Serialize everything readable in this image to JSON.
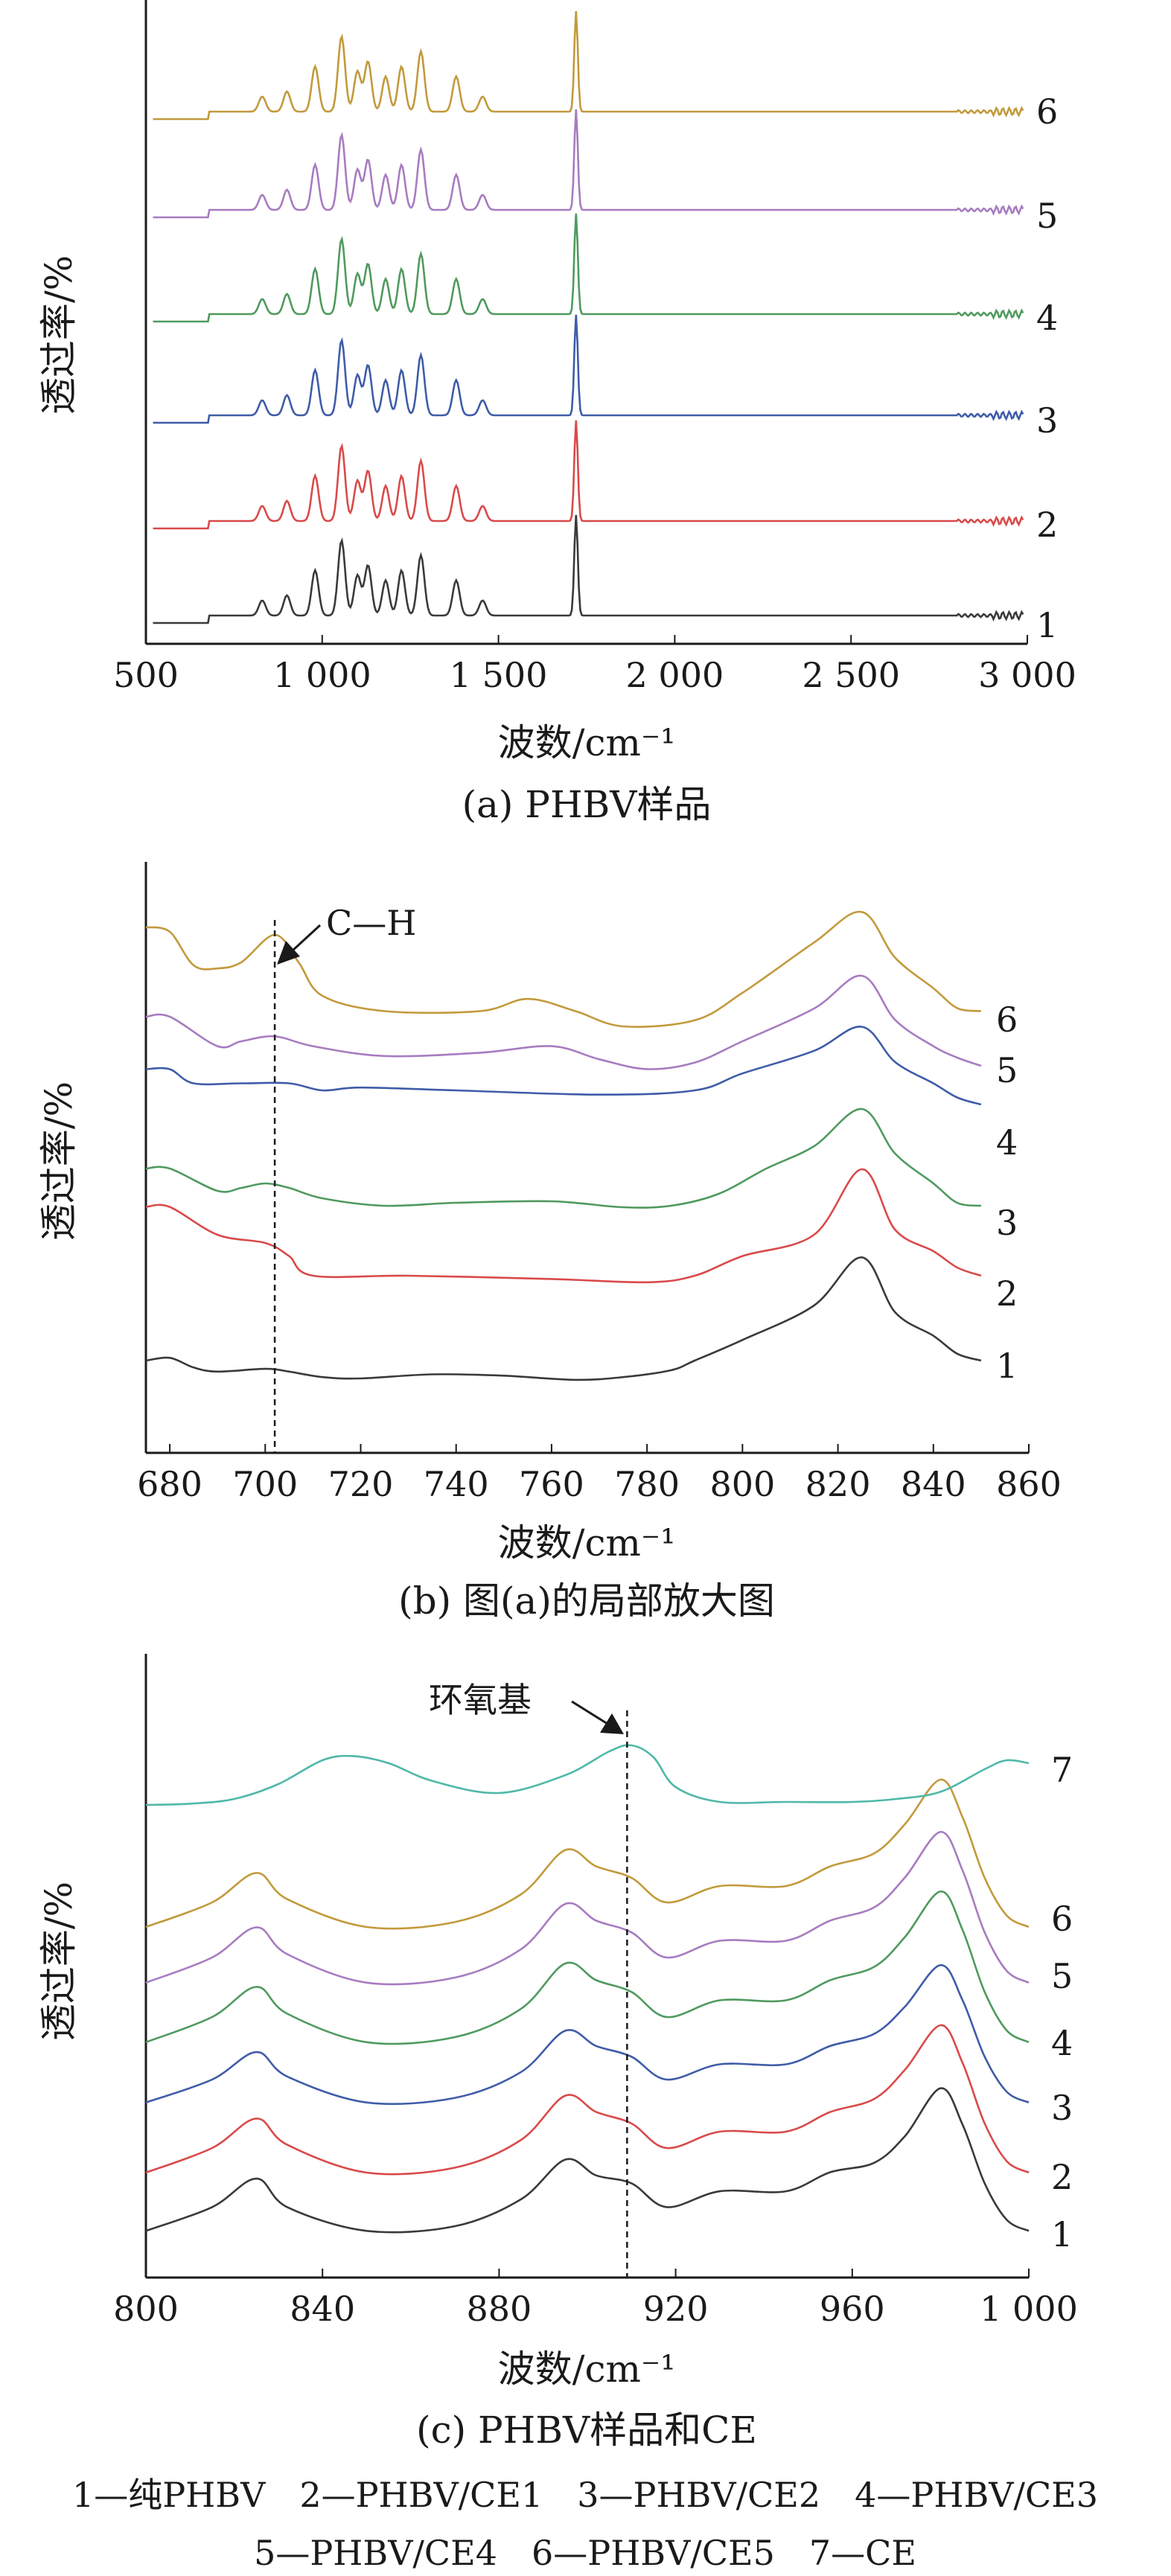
{
  "chart_data": [
    {
      "panel": "a",
      "type": "line",
      "caption": "(a) PHBV样品",
      "xlabel": "波数/cm⁻¹",
      "ylabel": "透过率/%",
      "xlim": [
        500,
        3000
      ],
      "xticks": [
        500,
        1000,
        1500,
        2000,
        2500,
        3000
      ],
      "xtick_labels": [
        "500",
        "1 000",
        "1 500",
        "2 000",
        "2 500",
        "3 000"
      ],
      "grid": false,
      "peaks": [
        [
          830,
          0.15
        ],
        [
          900,
          0.2
        ],
        [
          980,
          0.45
        ],
        [
          1055,
          0.75
        ],
        [
          1100,
          0.4
        ],
        [
          1130,
          0.5
        ],
        [
          1180,
          0.35
        ],
        [
          1225,
          0.45
        ],
        [
          1280,
          0.6
        ],
        [
          1380,
          0.35
        ],
        [
          1455,
          0.15
        ],
        [
          1720,
          1.0
        ]
      ],
      "series": [
        {
          "name": "1",
          "color": "#3a3a3a",
          "values": "curve-1"
        },
        {
          "name": "2",
          "color": "#d94a4a",
          "values": "curve-2"
        },
        {
          "name": "3",
          "color": "#3f5ca8",
          "values": "curve-3"
        },
        {
          "name": "4",
          "color": "#4f9a5e",
          "values": "curve-4"
        },
        {
          "name": "5",
          "color": "#a77cc0",
          "values": "curve-5"
        },
        {
          "name": "6",
          "color": "#c29a3c",
          "values": "curve-6"
        }
      ]
    },
    {
      "panel": "b",
      "type": "line",
      "caption": "(b) 图(a)的局部放大图",
      "xlabel": "波数/cm⁻¹",
      "ylabel": "透过率/%",
      "xlim": [
        675,
        860
      ],
      "xticks": [
        680,
        700,
        720,
        740,
        760,
        780,
        800,
        820,
        840,
        860
      ],
      "xtick_labels": [
        "680",
        "700",
        "720",
        "740",
        "760",
        "780",
        "800",
        "820",
        "840",
        "860"
      ],
      "grid": false,
      "marker_x": 702,
      "annotation": "C—H",
      "series": [
        {
          "name": "1",
          "color": "#3a3a3a",
          "x": [
            675,
            680,
            685,
            690,
            700,
            705,
            712,
            720,
            735,
            750,
            765,
            775,
            785,
            790,
            800,
            815,
            825,
            832,
            840,
            845,
            850
          ],
          "y": [
            0.2,
            0.22,
            0.15,
            0.12,
            0.14,
            0.12,
            0.08,
            0.07,
            0.1,
            0.09,
            0.06,
            0.08,
            0.13,
            0.2,
            0.35,
            0.6,
            0.95,
            0.55,
            0.38,
            0.25,
            0.2
          ]
        },
        {
          "name": "2",
          "color": "#d94a4a",
          "x": [
            675,
            680,
            690,
            700,
            705,
            710,
            730,
            760,
            780,
            790,
            800,
            815,
            825,
            832,
            840,
            845,
            850
          ],
          "y": [
            0.72,
            0.72,
            0.55,
            0.5,
            0.42,
            0.3,
            0.3,
            0.28,
            0.26,
            0.3,
            0.42,
            0.55,
            0.95,
            0.58,
            0.45,
            0.35,
            0.3
          ]
        },
        {
          "name": "3",
          "color": "#4f9a5e",
          "x": [
            675,
            680,
            690,
            695,
            700,
            705,
            712,
            725,
            740,
            760,
            775,
            785,
            795,
            805,
            815,
            825,
            832,
            840,
            845,
            850
          ],
          "y": [
            0.55,
            0.55,
            0.4,
            0.42,
            0.45,
            0.42,
            0.35,
            0.3,
            0.32,
            0.33,
            0.29,
            0.3,
            0.38,
            0.55,
            0.7,
            0.95,
            0.65,
            0.45,
            0.32,
            0.3
          ]
        },
        {
          "name": "4",
          "color": "#3f5ca8",
          "x": [
            675,
            680,
            685,
            695,
            705,
            712,
            720,
            740,
            770,
            790,
            800,
            815,
            825,
            832,
            840,
            845,
            850
          ],
          "y": [
            0.65,
            0.65,
            0.55,
            0.55,
            0.55,
            0.5,
            0.52,
            0.5,
            0.47,
            0.5,
            0.62,
            0.78,
            0.95,
            0.7,
            0.55,
            0.45,
            0.4
          ]
        },
        {
          "name": "5",
          "color": "#a77cc0",
          "x": [
            675,
            680,
            690,
            695,
            702,
            710,
            725,
            745,
            760,
            770,
            780,
            790,
            800,
            815,
            825,
            832,
            840,
            845,
            850
          ],
          "y": [
            0.7,
            0.7,
            0.52,
            0.55,
            0.58,
            0.52,
            0.46,
            0.48,
            0.52,
            0.44,
            0.38,
            0.42,
            0.55,
            0.75,
            0.95,
            0.68,
            0.52,
            0.45,
            0.4
          ]
        },
        {
          "name": "6",
          "color": "#c29a3c",
          "x": [
            675,
            680,
            685,
            690,
            695,
            702,
            707,
            712,
            725,
            745,
            755,
            765,
            775,
            790,
            800,
            815,
            825,
            832,
            840,
            845,
            850
          ],
          "y": [
            0.85,
            0.82,
            0.6,
            0.58,
            0.62,
            0.8,
            0.62,
            0.4,
            0.3,
            0.3,
            0.38,
            0.3,
            0.2,
            0.24,
            0.42,
            0.75,
            0.95,
            0.65,
            0.45,
            0.32,
            0.3
          ]
        }
      ]
    },
    {
      "panel": "c",
      "type": "line",
      "caption": "(c) PHBV样品和CE",
      "xlabel": "波数/cm⁻¹",
      "ylabel": "透过率/%",
      "xlim": [
        800,
        1000
      ],
      "xticks": [
        800,
        840,
        880,
        920,
        960,
        1000
      ],
      "xtick_labels": [
        "800",
        "840",
        "880",
        "920",
        "960",
        "1 000"
      ],
      "grid": false,
      "marker_x": 909,
      "annotation": "环氧基",
      "series": [
        {
          "name": "1",
          "color": "#3a3a3a",
          "x": [
            800,
            815,
            825,
            832,
            850,
            870,
            885,
            895,
            902,
            910,
            918,
            930,
            945,
            955,
            965,
            972,
            980,
            985,
            990,
            995,
            1000
          ],
          "y": [
            0.05,
            0.2,
            0.38,
            0.2,
            0.05,
            0.08,
            0.25,
            0.5,
            0.4,
            0.35,
            0.2,
            0.3,
            0.3,
            0.42,
            0.48,
            0.65,
            0.95,
            0.72,
            0.35,
            0.12,
            0.05
          ]
        },
        {
          "name": "2",
          "color": "#d94a4a",
          "x": [
            800,
            815,
            825,
            832,
            850,
            870,
            885,
            895,
            902,
            910,
            918,
            930,
            945,
            955,
            965,
            972,
            980,
            985,
            990,
            995,
            1000
          ],
          "y": [
            0.05,
            0.2,
            0.38,
            0.22,
            0.05,
            0.08,
            0.25,
            0.52,
            0.42,
            0.35,
            0.2,
            0.3,
            0.3,
            0.42,
            0.5,
            0.68,
            0.95,
            0.72,
            0.35,
            0.12,
            0.05
          ]
        },
        {
          "name": "3",
          "color": "#3f5ca8",
          "x": [
            800,
            815,
            825,
            832,
            850,
            870,
            885,
            895,
            902,
            910,
            918,
            930,
            945,
            955,
            965,
            972,
            980,
            985,
            990,
            995,
            1000
          ],
          "y": [
            0.05,
            0.2,
            0.38,
            0.22,
            0.05,
            0.08,
            0.25,
            0.52,
            0.42,
            0.35,
            0.2,
            0.3,
            0.3,
            0.42,
            0.5,
            0.68,
            0.95,
            0.72,
            0.35,
            0.12,
            0.05
          ]
        },
        {
          "name": "4",
          "color": "#4f9a5e",
          "x": [
            800,
            815,
            825,
            832,
            850,
            870,
            885,
            895,
            902,
            910,
            918,
            930,
            945,
            955,
            965,
            972,
            980,
            985,
            990,
            995,
            1000
          ],
          "y": [
            0.05,
            0.2,
            0.38,
            0.22,
            0.05,
            0.08,
            0.25,
            0.52,
            0.42,
            0.35,
            0.2,
            0.3,
            0.3,
            0.42,
            0.5,
            0.68,
            0.95,
            0.72,
            0.35,
            0.12,
            0.05
          ]
        },
        {
          "name": "5",
          "color": "#a77cc0",
          "x": [
            800,
            815,
            825,
            832,
            850,
            870,
            885,
            895,
            902,
            910,
            918,
            930,
            945,
            955,
            965,
            972,
            980,
            985,
            990,
            995,
            1000
          ],
          "y": [
            0.05,
            0.2,
            0.38,
            0.22,
            0.05,
            0.08,
            0.25,
            0.52,
            0.42,
            0.35,
            0.2,
            0.3,
            0.3,
            0.42,
            0.5,
            0.68,
            0.95,
            0.72,
            0.35,
            0.12,
            0.05
          ]
        },
        {
          "name": "6",
          "color": "#c29a3c",
          "x": [
            800,
            815,
            825,
            832,
            850,
            870,
            885,
            895,
            902,
            910,
            918,
            930,
            945,
            955,
            965,
            972,
            980,
            985,
            990,
            995,
            1000
          ],
          "y": [
            0.05,
            0.2,
            0.38,
            0.22,
            0.05,
            0.08,
            0.25,
            0.52,
            0.42,
            0.35,
            0.2,
            0.3,
            0.3,
            0.42,
            0.5,
            0.68,
            0.95,
            0.72,
            0.35,
            0.12,
            0.05
          ]
        },
        {
          "name": "7",
          "color": "#4fb8a8",
          "x": [
            800,
            810,
            820,
            830,
            840,
            847,
            855,
            865,
            880,
            895,
            905,
            910,
            915,
            920,
            930,
            945,
            960,
            970,
            980,
            990,
            995,
            1000
          ],
          "y": [
            0.0,
            0.02,
            0.1,
            0.35,
            0.75,
            0.82,
            0.7,
            0.4,
            0.2,
            0.5,
            0.9,
            1.0,
            0.8,
            0.3,
            0.05,
            0.05,
            0.05,
            0.1,
            0.22,
            0.6,
            0.75,
            0.7
          ]
        }
      ]
    }
  ],
  "legend": {
    "line1": "1—纯PHBV　2—PHBV/CE1　3—PHBV/CE2　4—PHBV/CE3",
    "line2": "5—PHBV/CE4　6—PHBV/CE5　7—CE"
  }
}
